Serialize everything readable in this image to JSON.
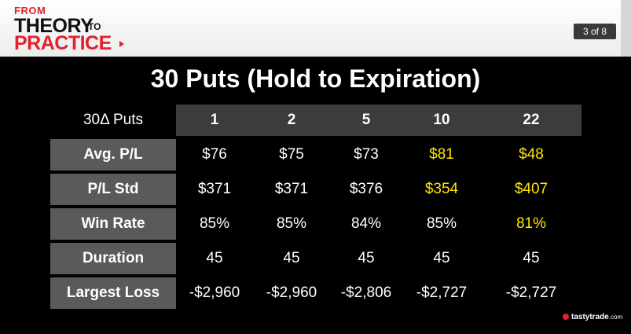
{
  "header": {
    "logo_from": "FROM",
    "logo_theory": "THEORY",
    "logo_to": "TO",
    "logo_practice": "PRACTICE",
    "page_indicator": "3 of 8"
  },
  "title": "30 Puts (Hold to Expiration)",
  "table": {
    "corner_label": "30Δ Puts",
    "columns": [
      "1",
      "2",
      "5",
      "10",
      "22"
    ],
    "rows": [
      {
        "label": "Avg. P/L",
        "values": [
          "$76",
          "$75",
          "$73",
          "$81",
          "$48"
        ]
      },
      {
        "label": "P/L Std",
        "values": [
          "$371",
          "$371",
          "$376",
          "$354",
          "$407"
        ]
      },
      {
        "label": "Win Rate",
        "values": [
          "85%",
          "85%",
          "84%",
          "85%",
          "81%"
        ]
      },
      {
        "label": "Duration",
        "values": [
          "45",
          "45",
          "45",
          "45",
          "45"
        ]
      },
      {
        "label": "Largest Loss",
        "values": [
          "-$2,960",
          "-$2,960",
          "-$2,806",
          "-$2,727",
          "-$2,727"
        ]
      }
    ],
    "highlight_color": "#ffe600"
  },
  "footer": {
    "brand": "tastytrade",
    "brand_suffix": ".com"
  }
}
